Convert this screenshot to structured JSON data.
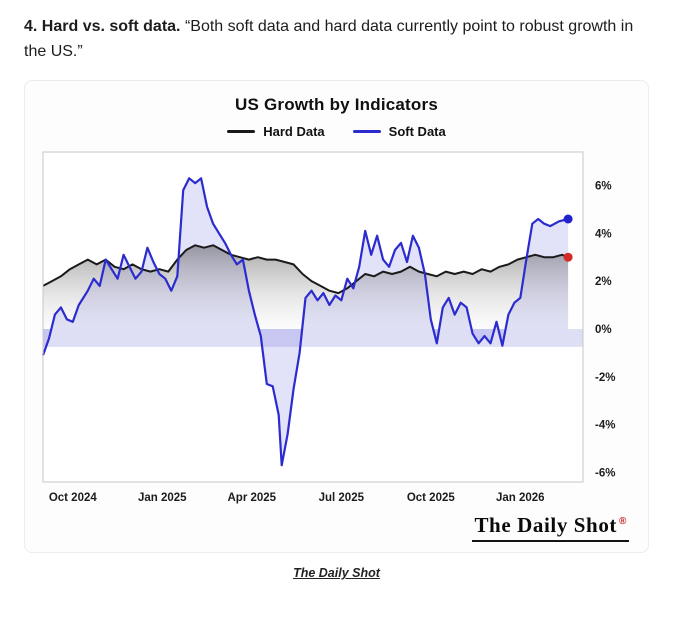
{
  "page": {
    "intro_bold": "4. Hard vs. soft data.",
    "intro_quote": "“Both soft data and hard data currently point to robust growth in the US.”",
    "logo_text": "The Daily Shot",
    "logo_mark": "®",
    "footer_link": "The Daily Shot"
  },
  "chart_data": {
    "type": "line",
    "title": "US Growth by Indicators",
    "legend_position": "top",
    "grid": false,
    "y_axis_side": "right",
    "xlim": [
      -1,
      17.1
    ],
    "ylim": [
      -6.4,
      7.4
    ],
    "x_ticks": [
      {
        "pos": 0,
        "label": "Oct 2024"
      },
      {
        "pos": 3,
        "label": "Jan 2025"
      },
      {
        "pos": 6,
        "label": "Apr 2025"
      },
      {
        "pos": 9,
        "label": "Jul 2025"
      },
      {
        "pos": 12,
        "label": "Oct 2025"
      },
      {
        "pos": 15,
        "label": "Jan 2026"
      }
    ],
    "y_ticks": [
      {
        "value": 6,
        "label": "6%"
      },
      {
        "value": 4,
        "label": "4%"
      },
      {
        "value": 2,
        "label": "2%"
      },
      {
        "value": 0,
        "label": "0%"
      },
      {
        "value": -2,
        "label": "-2%"
      },
      {
        "value": -4,
        "label": "-4%"
      },
      {
        "value": -6,
        "label": "-6%"
      }
    ],
    "zero_band": {
      "from": 0,
      "to": -0.75,
      "color": "#d8d8f3"
    },
    "legend": [
      {
        "label": "Hard Data",
        "color": "#1a1a1a"
      },
      {
        "label": "Soft Data",
        "color": "#2b2bd0"
      }
    ],
    "series": [
      {
        "name": "Hard Data",
        "color": "#1a1a1a",
        "fill": "gradient-gray",
        "end_dot_color": "#d42a2a",
        "x": [
          -1.0,
          -0.7,
          -0.4,
          -0.1,
          0.2,
          0.5,
          0.8,
          1.1,
          1.4,
          1.7,
          2.0,
          2.3,
          2.6,
          2.9,
          3.2,
          3.5,
          3.8,
          4.1,
          4.4,
          4.7,
          5.0,
          5.3,
          5.6,
          5.9,
          6.2,
          6.5,
          6.8,
          7.1,
          7.4,
          7.7,
          8.0,
          8.3,
          8.6,
          8.9,
          9.2,
          9.5,
          9.8,
          10.1,
          10.4,
          10.7,
          11.0,
          11.3,
          11.6,
          11.9,
          12.2,
          12.5,
          12.8,
          13.1,
          13.4,
          13.7,
          14.0,
          14.3,
          14.6,
          14.9,
          15.2,
          15.5,
          15.8,
          16.1,
          16.4,
          16.6
        ],
        "y": [
          1.8,
          2.0,
          2.2,
          2.5,
          2.7,
          2.9,
          2.7,
          2.9,
          2.6,
          2.5,
          2.7,
          2.5,
          2.4,
          2.5,
          2.4,
          2.9,
          3.3,
          3.5,
          3.4,
          3.5,
          3.3,
          3.1,
          3.0,
          2.9,
          3.0,
          2.9,
          2.9,
          2.8,
          2.7,
          2.3,
          2.0,
          1.8,
          1.6,
          1.5,
          1.7,
          2.0,
          2.3,
          2.2,
          2.4,
          2.3,
          2.4,
          2.6,
          2.4,
          2.3,
          2.2,
          2.4,
          2.3,
          2.4,
          2.3,
          2.5,
          2.4,
          2.6,
          2.7,
          2.9,
          3.0,
          3.1,
          3.0,
          3.0,
          3.1,
          3.0
        ]
      },
      {
        "name": "Soft Data",
        "color": "#2b2bd0",
        "fill": "rgba(108,108,226,0.20)",
        "end_dot_color": "#2222cc",
        "x": [
          -1.0,
          -0.8,
          -0.6,
          -0.4,
          -0.2,
          0.0,
          0.2,
          0.5,
          0.7,
          0.9,
          1.1,
          1.3,
          1.5,
          1.7,
          1.9,
          2.1,
          2.3,
          2.5,
          2.7,
          2.9,
          3.1,
          3.3,
          3.5,
          3.7,
          3.9,
          4.1,
          4.3,
          4.5,
          4.7,
          4.9,
          5.1,
          5.3,
          5.5,
          5.7,
          5.9,
          6.1,
          6.3,
          6.5,
          6.7,
          6.9,
          7.0,
          7.2,
          7.4,
          7.6,
          7.8,
          8.0,
          8.2,
          8.4,
          8.6,
          8.8,
          9.0,
          9.2,
          9.4,
          9.6,
          9.8,
          10.0,
          10.2,
          10.4,
          10.6,
          10.8,
          11.0,
          11.2,
          11.4,
          11.6,
          11.8,
          12.0,
          12.2,
          12.4,
          12.6,
          12.8,
          13.0,
          13.2,
          13.4,
          13.6,
          13.8,
          14.0,
          14.2,
          14.4,
          14.6,
          14.8,
          15.0,
          15.2,
          15.4,
          15.6,
          15.8,
          16.0,
          16.3,
          16.6
        ],
        "y": [
          -1.1,
          -0.4,
          0.6,
          0.9,
          0.4,
          0.3,
          1.0,
          1.6,
          2.1,
          1.8,
          2.9,
          2.5,
          2.1,
          3.1,
          2.6,
          2.1,
          2.4,
          3.4,
          2.8,
          2.3,
          2.1,
          1.6,
          2.2,
          5.8,
          6.3,
          6.1,
          6.3,
          5.1,
          4.4,
          4.0,
          3.6,
          3.1,
          2.7,
          2.9,
          1.6,
          0.6,
          -0.3,
          -2.3,
          -2.4,
          -3.6,
          -5.7,
          -4.4,
          -2.5,
          -1.0,
          1.3,
          1.6,
          1.2,
          1.5,
          1.0,
          1.4,
          1.2,
          2.1,
          1.7,
          2.6,
          4.1,
          3.1,
          3.9,
          2.9,
          2.6,
          3.3,
          3.6,
          2.8,
          3.9,
          3.4,
          2.3,
          0.4,
          -0.6,
          0.9,
          1.3,
          0.6,
          1.1,
          0.9,
          -0.2,
          -0.6,
          -0.3,
          -0.6,
          0.3,
          -0.7,
          0.6,
          1.1,
          1.3,
          2.9,
          4.4,
          4.6,
          4.4,
          4.3,
          4.5,
          4.6
        ]
      }
    ]
  }
}
